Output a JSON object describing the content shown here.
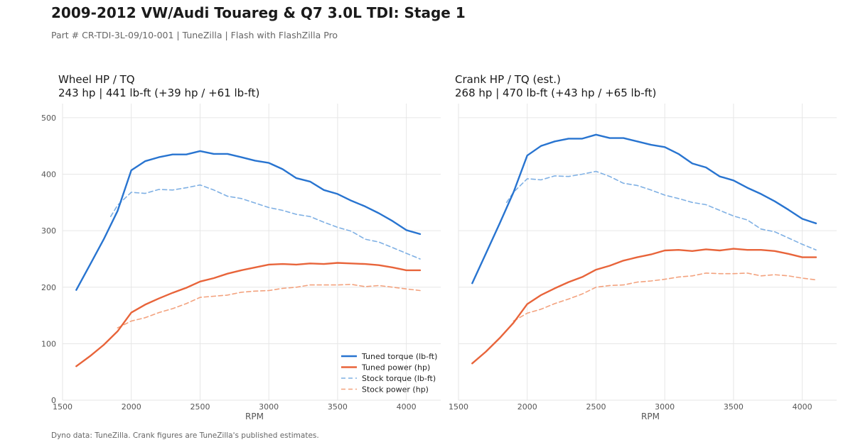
{
  "header": {
    "title": "2009-2012 VW/Audi Touareg & Q7 3.0L TDI: Stage 1",
    "subtitle": "Part # CR-TDI-3L-09/10-001  |  TuneZilla  |  Flash with FlashZilla Pro"
  },
  "footnote": "Dyno data: TuneZilla. Crank figures are TuneZilla's published estimates.",
  "colors": {
    "torque": "#2874d0",
    "power": "#e8643a",
    "stock_torque": "#7fb0e4",
    "stock_power": "#f3a27e",
    "grid": "#e6e6e6",
    "tick_text": "#555555"
  },
  "chart_data": [
    {
      "type": "line",
      "title": "Wheel HP / TQ",
      "subtitle": "243 hp  |  441 lb-ft   (+39 hp / +61 lb-ft)",
      "xlabel": "RPM",
      "ylabel": "",
      "xlim": [
        1500,
        4250
      ],
      "ylim": [
        0,
        525
      ],
      "xticks": [
        1500,
        2000,
        2500,
        3000,
        3500,
        4000
      ],
      "yticks": [
        0,
        100,
        200,
        300,
        400,
        500
      ],
      "grid": true,
      "legend": "bottom-right",
      "series": [
        {
          "name": "Tuned torque (lb-ft)",
          "style": "solid",
          "color_key": "torque",
          "x": [
            1600,
            1700,
            1800,
            1900,
            2000,
            2100,
            2200,
            2300,
            2400,
            2500,
            2600,
            2700,
            2800,
            2900,
            3000,
            3100,
            3200,
            3300,
            3400,
            3500,
            3600,
            3700,
            3800,
            3900,
            4000,
            4100
          ],
          "y": [
            195,
            240,
            285,
            335,
            407,
            423,
            430,
            435,
            435,
            441,
            436,
            436,
            430,
            424,
            420,
            409,
            393,
            387,
            372,
            365,
            353,
            343,
            331,
            317,
            301,
            294
          ]
        },
        {
          "name": "Tuned power (hp)",
          "style": "solid",
          "color_key": "power",
          "x": [
            1600,
            1700,
            1800,
            1900,
            2000,
            2100,
            2200,
            2300,
            2400,
            2500,
            2600,
            2700,
            2800,
            2900,
            3000,
            3100,
            3200,
            3300,
            3400,
            3500,
            3600,
            3700,
            3800,
            3900,
            4000,
            4100
          ],
          "y": [
            60,
            78,
            98,
            122,
            155,
            169,
            180,
            190,
            199,
            210,
            216,
            224,
            230,
            235,
            240,
            241,
            240,
            242,
            241,
            243,
            242,
            241,
            239,
            235,
            230,
            230
          ]
        },
        {
          "name": "Stock torque (lb-ft)",
          "style": "dashed",
          "color_key": "stock_torque",
          "x": [
            1850,
            1900,
            2000,
            2100,
            2200,
            2300,
            2400,
            2500,
            2600,
            2700,
            2800,
            2900,
            3000,
            3100,
            3200,
            3300,
            3400,
            3500,
            3600,
            3700,
            3800,
            3900,
            4000,
            4100
          ],
          "y": [
            325,
            345,
            368,
            366,
            373,
            372,
            376,
            381,
            372,
            361,
            357,
            349,
            341,
            336,
            329,
            325,
            315,
            306,
            299,
            285,
            280,
            270,
            260,
            250
          ]
        },
        {
          "name": "Stock power (hp)",
          "style": "dashed",
          "color_key": "stock_power",
          "x": [
            1900,
            2000,
            2100,
            2200,
            2300,
            2400,
            2500,
            2600,
            2700,
            2800,
            2900,
            3000,
            3100,
            3200,
            3300,
            3400,
            3500,
            3600,
            3700,
            3800,
            3900,
            4000,
            4100
          ],
          "y": [
            128,
            140,
            146,
            155,
            162,
            171,
            182,
            184,
            186,
            191,
            193,
            194,
            198,
            200,
            204,
            204,
            204,
            205,
            201,
            203,
            200,
            197,
            194
          ]
        }
      ]
    },
    {
      "type": "line",
      "title": "Crank HP / TQ (est.)",
      "subtitle": "268 hp  |  470 lb-ft   (+43 hp / +65 lb-ft)",
      "xlabel": "RPM",
      "ylabel": "",
      "xlim": [
        1500,
        4250
      ],
      "ylim": [
        0,
        525
      ],
      "xticks": [
        1500,
        2000,
        2500,
        3000,
        3500,
        4000
      ],
      "yticks": [
        0,
        100,
        200,
        300,
        400,
        500
      ],
      "grid": true,
      "legend": "",
      "series": [
        {
          "name": "Tuned torque (lb-ft)",
          "style": "solid",
          "color_key": "torque",
          "x": [
            1600,
            1700,
            1800,
            1900,
            2000,
            2100,
            2200,
            2300,
            2400,
            2500,
            2600,
            2700,
            2800,
            2900,
            3000,
            3100,
            3200,
            3300,
            3400,
            3500,
            3600,
            3700,
            3800,
            3900,
            4000,
            4100
          ],
          "y": [
            207,
            260,
            313,
            368,
            433,
            450,
            458,
            463,
            463,
            470,
            464,
            464,
            458,
            452,
            448,
            436,
            419,
            412,
            396,
            389,
            376,
            365,
            352,
            337,
            321,
            313
          ]
        },
        {
          "name": "Tuned power (hp)",
          "style": "solid",
          "color_key": "power",
          "x": [
            1600,
            1700,
            1800,
            1900,
            2000,
            2100,
            2200,
            2300,
            2400,
            2500,
            2600,
            2700,
            2800,
            2900,
            3000,
            3100,
            3200,
            3300,
            3400,
            3500,
            3600,
            3700,
            3800,
            3900,
            4000,
            4100
          ],
          "y": [
            65,
            86,
            110,
            137,
            170,
            186,
            198,
            209,
            218,
            231,
            238,
            247,
            253,
            258,
            265,
            266,
            264,
            267,
            265,
            268,
            266,
            266,
            264,
            259,
            253,
            253
          ]
        },
        {
          "name": "Stock torque (lb-ft)",
          "style": "dashed",
          "color_key": "stock_torque",
          "x": [
            1850,
            1900,
            2000,
            2100,
            2200,
            2300,
            2400,
            2500,
            2600,
            2700,
            2800,
            2900,
            3000,
            3100,
            3200,
            3300,
            3400,
            3500,
            3600,
            3700,
            3800,
            3900,
            4000,
            4100
          ],
          "y": [
            350,
            368,
            392,
            390,
            397,
            396,
            400,
            405,
            396,
            384,
            380,
            372,
            363,
            357,
            350,
            346,
            336,
            326,
            319,
            303,
            298,
            287,
            276,
            266
          ]
        },
        {
          "name": "Stock power (hp)",
          "style": "dashed",
          "color_key": "stock_power",
          "x": [
            1900,
            2000,
            2100,
            2200,
            2300,
            2400,
            2500,
            2600,
            2700,
            2800,
            2900,
            3000,
            3100,
            3200,
            3300,
            3400,
            3500,
            3600,
            3700,
            3800,
            3900,
            4000,
            4100
          ],
          "y": [
            140,
            154,
            161,
            171,
            179,
            188,
            200,
            203,
            204,
            209,
            211,
            214,
            218,
            220,
            225,
            224,
            224,
            225,
            220,
            222,
            220,
            216,
            213
          ]
        }
      ]
    }
  ]
}
